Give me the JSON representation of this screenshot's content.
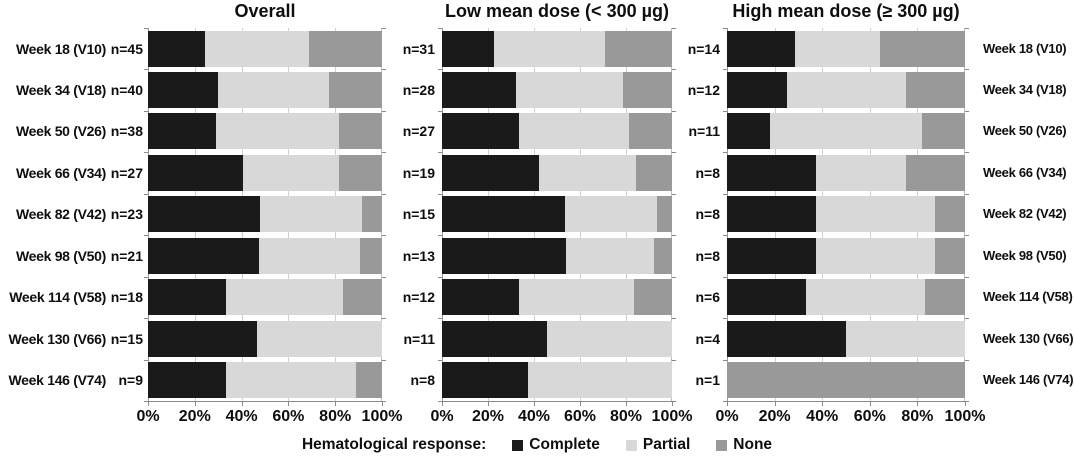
{
  "figure": {
    "background": "#ffffff"
  },
  "legend": {
    "title": "Hematological response:",
    "items": [
      {
        "label": "Complete",
        "color": "#1a1a1a"
      },
      {
        "label": "Partial",
        "color": "#d8d8d8"
      },
      {
        "label": "None",
        "color": "#999999"
      }
    ]
  },
  "n_prefix": "n=",
  "chart_data": [
    {
      "type": "bar",
      "orientation": "horizontal",
      "stacked": true,
      "title": "Overall",
      "xlim": [
        0,
        100
      ],
      "x_ticks": [
        "0%",
        "20%",
        "40%",
        "60%",
        "80%",
        "100%"
      ],
      "grid": true,
      "categories": [
        "Week 18 (V10)",
        "Week 34 (V18)",
        "Week 50 (V26)",
        "Week 66 (V34)",
        "Week 82 (V42)",
        "Week 98 (V50)",
        "Week 114 (V58)",
        "Week 130 (V66)",
        "Week 146 (V74)"
      ],
      "n": [
        45,
        40,
        38,
        27,
        23,
        21,
        18,
        15,
        9
      ],
      "series": [
        {
          "name": "Complete",
          "color": "#1a1a1a",
          "values": [
            24.4,
            30.0,
            28.9,
            40.7,
            47.8,
            47.6,
            33.3,
            46.7,
            33.3
          ]
        },
        {
          "name": "Partial",
          "color": "#d8d8d8",
          "values": [
            44.4,
            47.5,
            52.6,
            40.7,
            43.5,
            42.9,
            50.0,
            53.3,
            55.6
          ]
        },
        {
          "name": "None",
          "color": "#999999",
          "values": [
            31.1,
            22.5,
            18.4,
            18.5,
            8.7,
            9.5,
            16.7,
            0.0,
            11.1
          ]
        }
      ]
    },
    {
      "type": "bar",
      "orientation": "horizontal",
      "stacked": true,
      "title": "Low mean dose (< 300 µg)",
      "xlim": [
        0,
        100
      ],
      "x_ticks": [
        "0%",
        "20%",
        "40%",
        "60%",
        "80%",
        "100%"
      ],
      "grid": true,
      "categories": [
        "Week 18 (V10)",
        "Week 34 (V18)",
        "Week 50 (V26)",
        "Week 66 (V34)",
        "Week 82 (V42)",
        "Week 98 (V50)",
        "Week 114 (V58)",
        "Week 130 (V66)",
        "Week 146 (V74)"
      ],
      "n": [
        31,
        28,
        27,
        19,
        15,
        13,
        12,
        11,
        8
      ],
      "series": [
        {
          "name": "Complete",
          "color": "#1a1a1a",
          "values": [
            22.6,
            32.1,
            33.3,
            42.1,
            53.3,
            53.8,
            33.3,
            45.5,
            37.5
          ]
        },
        {
          "name": "Partial",
          "color": "#d8d8d8",
          "values": [
            48.4,
            46.4,
            48.1,
            42.1,
            40.0,
            38.5,
            50.0,
            54.5,
            62.5
          ]
        },
        {
          "name": "None",
          "color": "#999999",
          "values": [
            29.0,
            21.4,
            18.5,
            15.8,
            6.7,
            7.7,
            16.7,
            0.0,
            0.0
          ]
        }
      ]
    },
    {
      "type": "bar",
      "orientation": "horizontal",
      "stacked": true,
      "title": "High mean dose (≥ 300 µg)",
      "xlim": [
        0,
        100
      ],
      "x_ticks": [
        "0%",
        "20%",
        "40%",
        "60%",
        "80%",
        "100%"
      ],
      "grid": true,
      "categories": [
        "Week 18 (V10)",
        "Week 34 (V18)",
        "Week 50 (V26)",
        "Week 66 (V34)",
        "Week 82 (V42)",
        "Week 98 (V50)",
        "Week 114 (V58)",
        "Week 130 (V66)",
        "Week 146 (V74)"
      ],
      "n": [
        14,
        12,
        11,
        8,
        8,
        8,
        6,
        4,
        1
      ],
      "series": [
        {
          "name": "Complete",
          "color": "#1a1a1a",
          "values": [
            28.6,
            25.0,
            18.2,
            37.5,
            37.5,
            37.5,
            33.3,
            50.0,
            0.0
          ]
        },
        {
          "name": "Partial",
          "color": "#d8d8d8",
          "values": [
            35.7,
            50.0,
            63.6,
            37.5,
            50.0,
            50.0,
            50.0,
            50.0,
            0.0
          ]
        },
        {
          "name": "None",
          "color": "#999999",
          "values": [
            35.7,
            25.0,
            18.2,
            25.0,
            12.5,
            12.5,
            16.7,
            0.0,
            100.0
          ]
        }
      ]
    }
  ]
}
